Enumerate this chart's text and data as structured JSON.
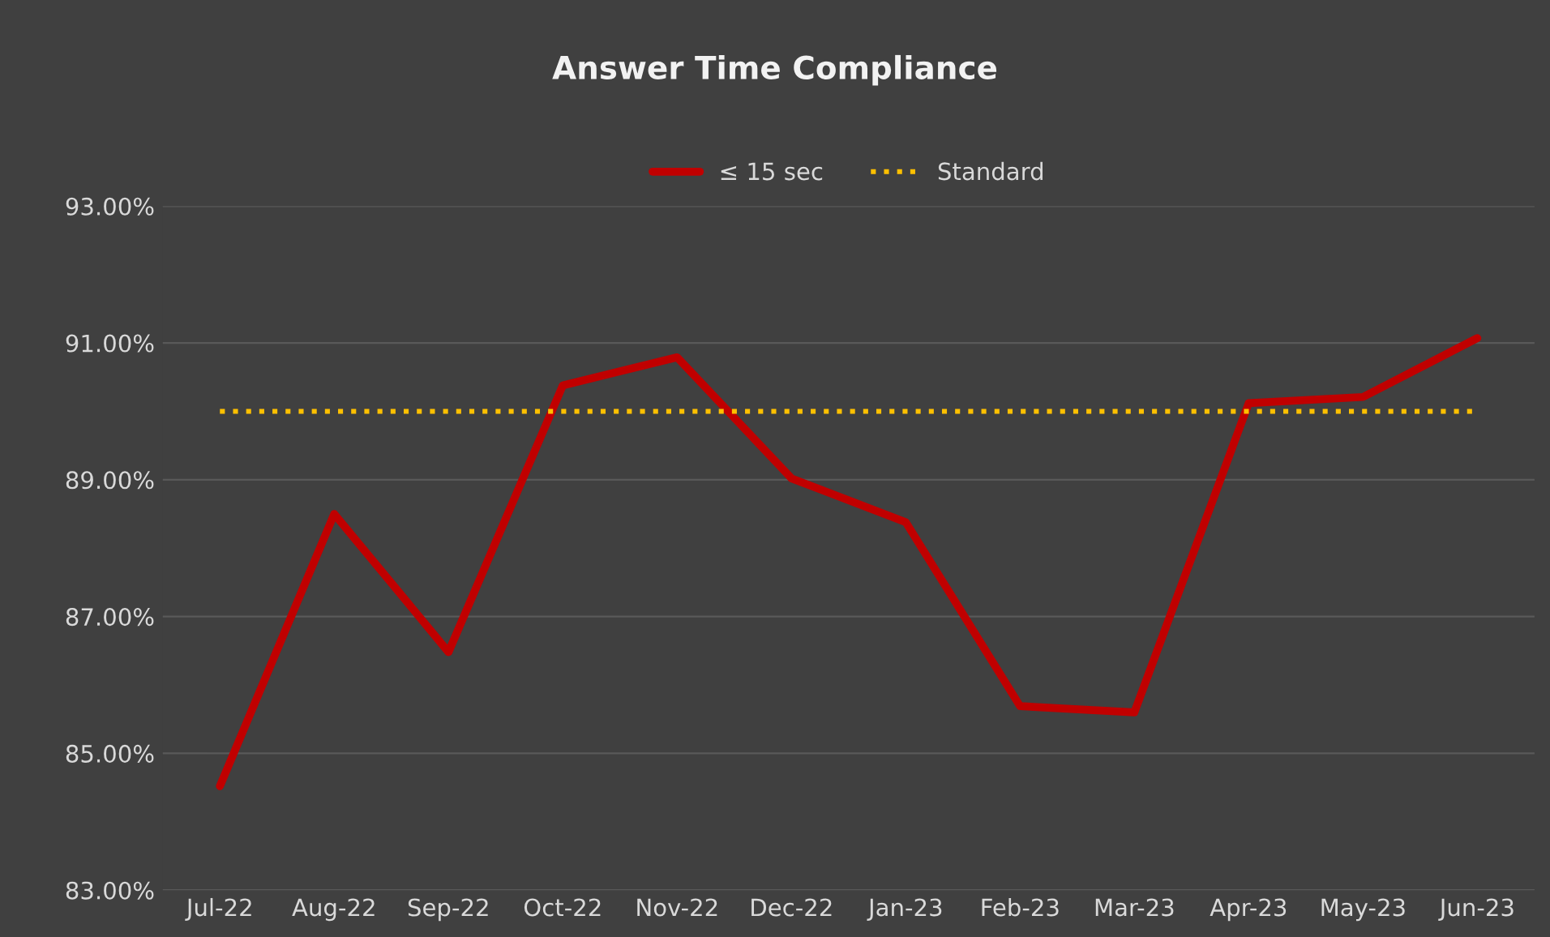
{
  "chart_data": {
    "type": "line",
    "title": "Answer Time Compliance",
    "categories": [
      "Jul-22",
      "Aug-22",
      "Sep-22",
      "Oct-22",
      "Nov-22",
      "Dec-22",
      "Jan-23",
      "Feb-23",
      "Mar-23",
      "Apr-23",
      "May-23",
      "Jun-23"
    ],
    "series": [
      {
        "name": "≤ 15 sec",
        "color": "#c00000",
        "line_style": "solid",
        "values": [
          84.52,
          88.5,
          86.48,
          90.38,
          90.79,
          89.02,
          88.38,
          85.69,
          85.6,
          90.12,
          90.21,
          91.07
        ]
      },
      {
        "name": "Standard",
        "color": "#ffc000",
        "line_style": "dotted",
        "values": [
          90,
          90,
          90,
          90,
          90,
          90,
          90,
          90,
          90,
          90,
          90,
          90
        ]
      }
    ],
    "ylim": [
      83,
      93
    ],
    "yticks": [
      {
        "value": 83,
        "label": "83.00%"
      },
      {
        "value": 85,
        "label": "85.00%"
      },
      {
        "value": 87,
        "label": "87.00%"
      },
      {
        "value": 89,
        "label": "89.00%"
      },
      {
        "value": 91,
        "label": "91.00%"
      },
      {
        "value": 93,
        "label": "93.00%"
      }
    ],
    "grid": "y",
    "legend": "top",
    "marker": "none"
  }
}
